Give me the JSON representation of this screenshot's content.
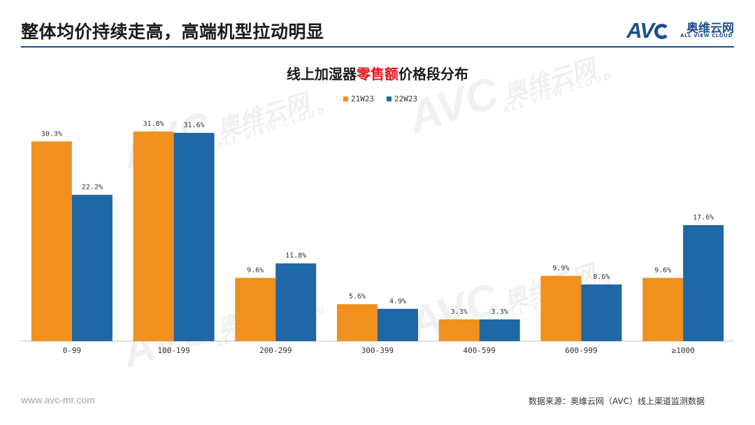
{
  "header": {
    "title": "整体均价持续走高，高端机型拉动明显",
    "brand_mark": "AVC",
    "brand_cn": "奥维云网",
    "brand_en": "ALL VIEW CLOUD"
  },
  "chart_title": {
    "prefix": "线上加湿器",
    "highlight": "零售额",
    "suffix": "价格段分布"
  },
  "chart_data": {
    "type": "bar",
    "title": "线上加湿器零售额价格段分布",
    "xlabel": "",
    "ylabel": "",
    "ylim": [
      0,
      35
    ],
    "grid": false,
    "legend_position": "top-center",
    "categories": [
      "0-99",
      "100-199",
      "200-299",
      "300-399",
      "400-599",
      "600-999",
      "≥1000"
    ],
    "series": [
      {
        "name": "21W23",
        "color": "#f0901e",
        "values": [
          30.3,
          31.8,
          9.6,
          5.6,
          3.3,
          9.9,
          9.6
        ]
      },
      {
        "name": "22W23",
        "color": "#1f67a6",
        "values": [
          22.2,
          31.6,
          11.8,
          4.9,
          3.3,
          8.6,
          17.6
        ]
      }
    ],
    "value_suffix": "%"
  },
  "footer": {
    "url": "www.avc-mr.com",
    "source": "数据来源：奥维云网（AVC）线上渠道监测数据"
  },
  "watermark": {
    "mark": "AVC",
    "cn": "奥维云网",
    "en": "ALL VIEW CLOUD"
  }
}
